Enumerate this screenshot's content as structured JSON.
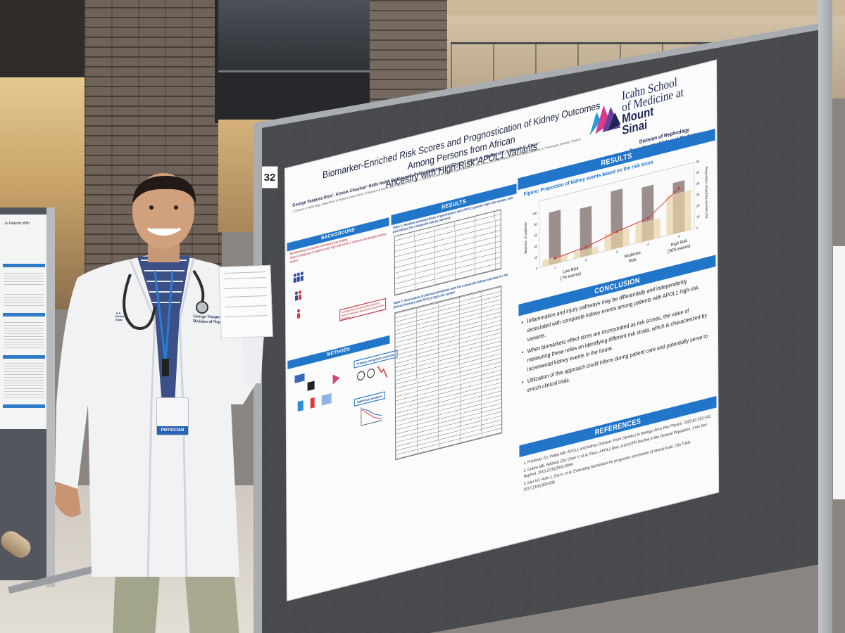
{
  "board": {
    "number": "32"
  },
  "poster": {
    "title_line1": "Biomarker-Enriched Risk Scores and Prognostication of Kidney Outcomes Among Persons from African",
    "title_line2_pre": "Ancestry with High-Risk ",
    "title_gene": "APOL1",
    "title_line2_post": " Variants",
    "authors": "George Vasquez-Rios¹, Kinsuk Chauhan¹ Nidhi Naik¹, Pattharawin Pattharanitima⁴, Lili Chan¹,², Girish N. Nadkarni¹,²,³, Steven G. Coca¹",
    "affiliations": "1. Division of Nephrology, Department of Medicine Icahn School of Medicine at Mount Sinai, New York, NY, USA; 2. Division of Data-Driven and Digital Medicine; 3. The Charles Bronfman Institute for Personalized Medicine; 4. Thammasat University, Thailand",
    "logo": {
      "line1": "Icahn School",
      "line2": "of Medicine at",
      "line3": "Mount",
      "line4": "Sinai"
    },
    "department": {
      "line1": "Division of Nephrology",
      "line2": "Department of Internal Medicine"
    },
    "sections": {
      "background": "BACKGROUND",
      "results_left": "RESULTS",
      "results_right": "RESULTS",
      "methods": "METHODS",
      "conclusion": "CONCLUSION",
      "references": "REFERENCES"
    },
    "background": {
      "line1": "Epidemiological studies revealed a key finding:",
      "line2": "Only a subgroup of patients with high-risk APOL1 variants will develop kidney events",
      "box": "Translational and clinical information in view of emerging clinical trials and potential therapies"
    },
    "methods": {
      "primary_outcome": "Primary composite outcome",
      "statistical": "Statistical analysis"
    },
    "table1_caption": "Table 1. Baseline characteristics of participants with APOL1 genetic high-risk variant, with and without the composite kidney outcome",
    "table2_caption": "Table 2. Association of plasma biomarkers with the composite kidney outcome for the African Ancestry with APOL1 high-risk variant",
    "figure_title": "Figure: Proportion of kidney events based on the risk score",
    "conclusion": [
      "Inflammation and injury pathways may be differentially and independently associated with composite kidney events among patients with APOL1 high-risk variants.",
      "When biomarkers effect sizes are incorporated as risk scores, the value of measuring these relies on identifying different risk strata, which is characterized by incremental kidney events in the future.",
      "Utilization of this approach could inform during patient care and potentially serve to enrich clinical trials."
    ],
    "references": [
      "Friedman DJ, Pollak MR. APOL1 and Kidney Disease: From Genetics to Biology. Annu Rev Physiol. 2020;82:323-342.",
      "Grams ME, Rebholz CM, Chen Y, et al. Race, APOL1 Risk, and eGFR Decline in the General Population. J Am Soc Nephrol. 2016;27(9):2842-2850.",
      "Kerr KF, Roth J, Zhu K, et al. Evaluating biomarkers for prognostic enrichment of clinical trials. Clin Trials. 2017;14(6):629-638."
    ]
  },
  "chart_data": {
    "type": "bar",
    "title": "Figure: Proportion of kidney events based on the risk score",
    "ylabel": "Number of patients",
    "y2label": "Proportion of kidney events (%)",
    "categories": [
      "1",
      "2",
      "3",
      "4",
      "5"
    ],
    "ylim": [
      0,
      120
    ],
    "y2lim": [
      0,
      60
    ],
    "yticks": [
      0,
      20,
      40,
      60,
      80,
      100
    ],
    "y2ticks": [
      0,
      10,
      20,
      30,
      40,
      50,
      60
    ],
    "series": [
      {
        "values": [
          95,
          88,
          105,
          98,
          92
        ]
      },
      {
        "values": [
          12,
          12,
          30,
          35,
          72
        ]
      },
      {
        "type": "line",
        "axis": "y2",
        "values": [
          5,
          8,
          15,
          20,
          40
        ]
      }
    ],
    "groups": [
      {
        "label_line1": "Low Risk",
        "label_line2": "(7% events)"
      },
      {
        "label_line1": "Moderate",
        "label_line2": "Risk"
      },
      {
        "label_line1": "High Risk",
        "label_line2": "(36% events)"
      }
    ],
    "colors": {
      "main_bar": "#9a8f8c",
      "inner_bar": "#e9d3a6",
      "line": "#d13a3a"
    }
  },
  "person": {
    "badge_label": "PHYSICIAN",
    "coat_name_line1": "George Vasquez R.",
    "coat_name_line2": "Division of Nephrol"
  },
  "side_poster": {
    "title": "...in Patients With"
  }
}
